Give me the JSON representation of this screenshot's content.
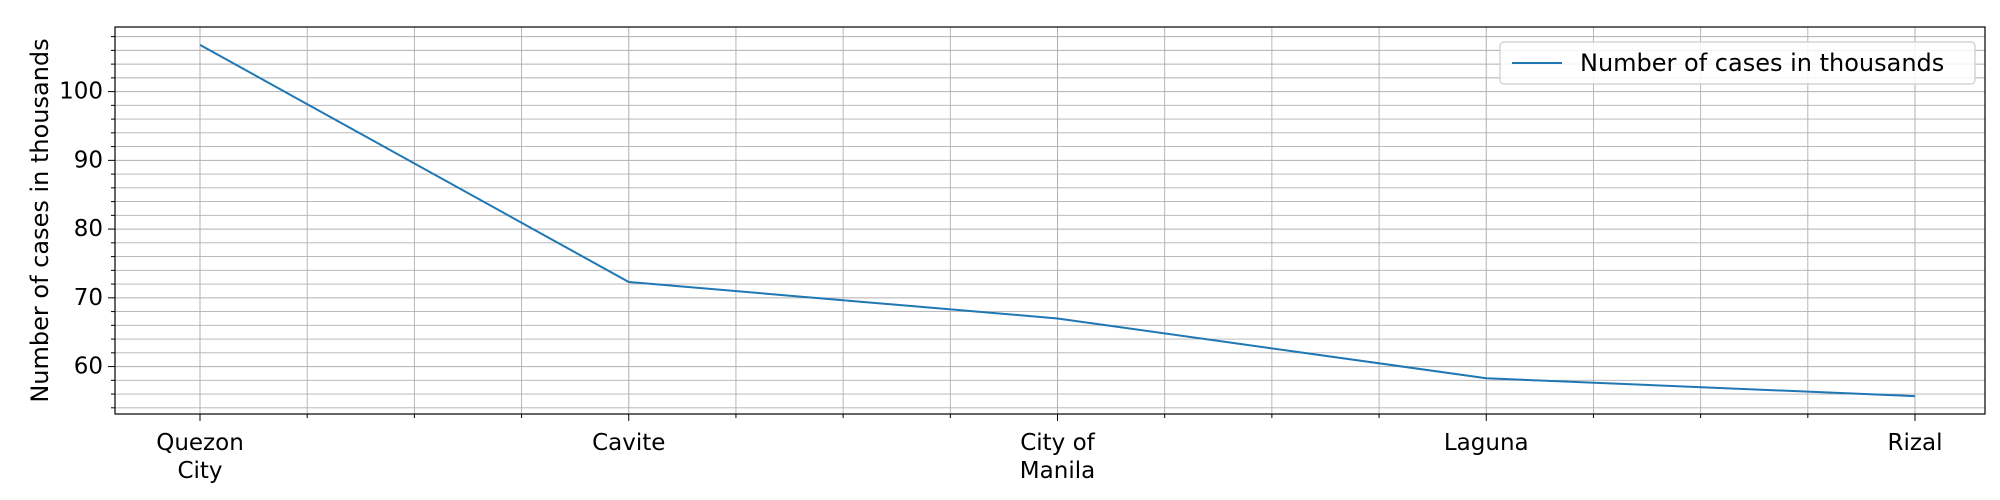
{
  "chart_data": {
    "type": "line",
    "categories": [
      "Quezon\nCity",
      "Cavite",
      "City of\nManila",
      "Laguna",
      "Rizal"
    ],
    "series": [
      {
        "name": "Number of cases in thousands",
        "values": [
          106.8,
          72.3,
          67.0,
          58.3,
          55.7
        ],
        "color": "#1f77b4"
      }
    ],
    "xlabel": "",
    "ylabel": "Number of cases in thousands",
    "ylim": [
      53.1,
      109.4
    ],
    "yticks": [
      60,
      70,
      80,
      90,
      100
    ],
    "grid": true,
    "minor_grid": true,
    "legend": "top-right"
  }
}
